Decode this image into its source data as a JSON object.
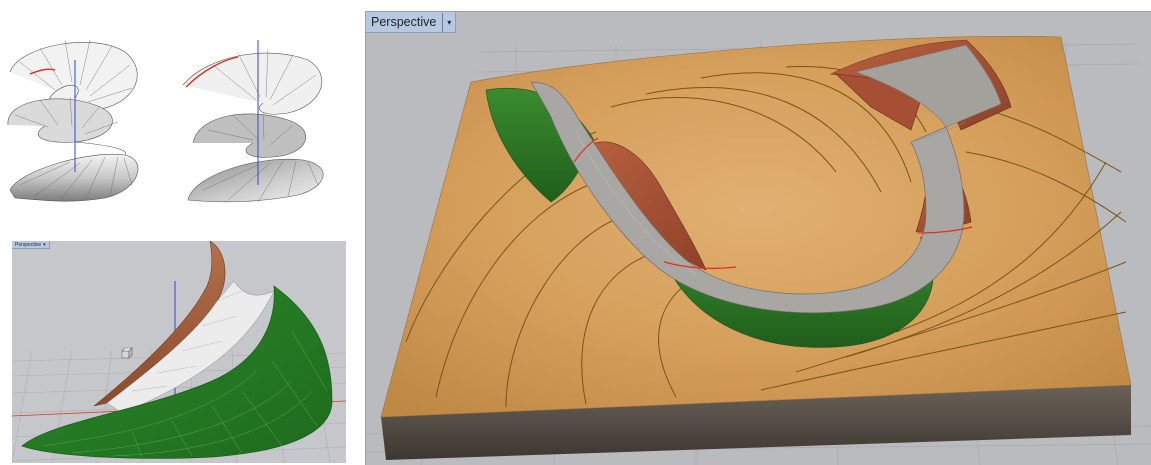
{
  "viewports": {
    "main": {
      "title": "Perspective",
      "menu_icon": "dropdown-arrow-icon"
    },
    "small": {
      "title": "Perspective",
      "menu_icon": "dropdown-arrow-icon"
    }
  },
  "colors": {
    "viewport_bg": "#b9bbbe",
    "grid_line": "#a9abae",
    "terrain_sand": "#d8a35e",
    "cut_slope": "#a3553b",
    "fill_slope": "#2f7d2a",
    "road": "#a8a7a3",
    "contour": "#7a5514",
    "axis_red": "#e03020",
    "axis_blue": "#3344dd"
  }
}
